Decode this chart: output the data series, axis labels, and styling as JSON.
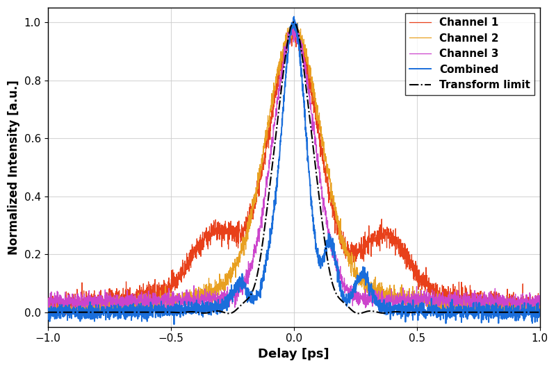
{
  "title": "",
  "xlabel": "Delay [ps]",
  "ylabel": "Normalized Intensity [a.u.]",
  "xlim": [
    -1,
    1
  ],
  "ylim": [
    -0.05,
    1.05
  ],
  "xticks": [
    -1,
    -0.5,
    0,
    0.5,
    1
  ],
  "yticks": [
    0,
    0.2,
    0.4,
    0.6,
    0.8,
    1
  ],
  "legend_entries": [
    "Transform limit",
    "Channel 1",
    "Channel 2",
    "Channel 3",
    "Combined"
  ],
  "colors": {
    "transform_limit": "#000000",
    "channel1": "#e8401a",
    "channel2": "#e8a020",
    "channel3": "#cc44cc",
    "combined": "#1a6edb"
  },
  "figsize": [
    8.0,
    5.3
  ],
  "dpi": 100,
  "background_color": "#ffffff",
  "grid_color": "#cccccc",
  "noise_seed": 42
}
